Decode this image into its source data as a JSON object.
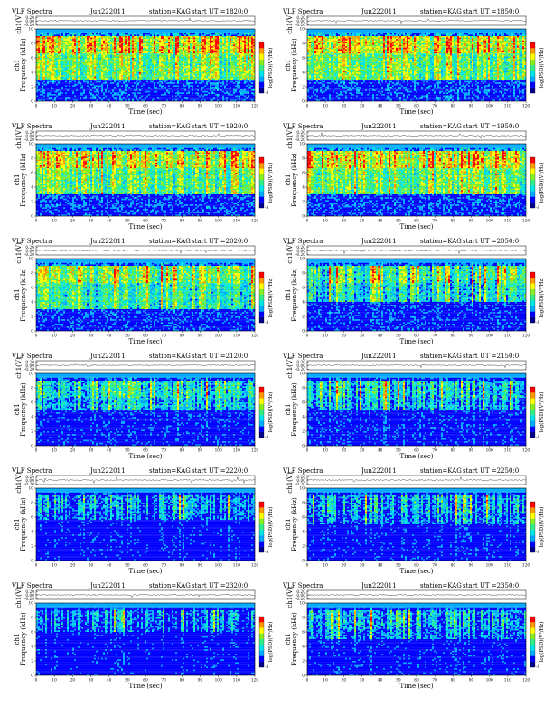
{
  "chart_data": [
    {
      "type": "heatmap",
      "title": "VLF Spectra",
      "date": "Jun222011",
      "station": "station=KAG",
      "start": "start  UT =1820:0",
      "ylabel": "ch1\nFrequency (kHz)",
      "trace_label": "ch1(V)",
      "trace_ticks": [
        "0.20",
        "0.00",
        "-0.20"
      ],
      "xlabel": "Time (sec)",
      "xlim": [
        0,
        120
      ],
      "ylim": [
        0,
        10
      ],
      "colorbar_label": "log(PSD)(V²/Hz)",
      "colorbar_ticks": [
        "",
        "-8"
      ],
      "density": 0.85,
      "band_low": 3
    },
    {
      "type": "heatmap",
      "title": "VLF Spectra",
      "date": "Jun222011",
      "station": "station=KAG",
      "start": "start  UT =1850:0",
      "ylabel": "ch1\nFrequency (kHz)",
      "trace_label": "ch1(V)",
      "trace_ticks": [
        "0.20",
        "0.00",
        "-0.20"
      ],
      "xlabel": "Time (sec)",
      "xlim": [
        0,
        120
      ],
      "ylim": [
        0,
        10
      ],
      "colorbar_label": "log(PSD)(V²/Hz)",
      "colorbar_ticks": [
        "",
        ""
      ],
      "density": 0.85,
      "band_low": 3
    },
    {
      "type": "heatmap",
      "title": "VLF Spectra",
      "date": "Jun222011",
      "station": "station=KAG",
      "start": "start  UT =1920:0",
      "ylabel": "ch1\nFrequency (kHz)",
      "trace_label": "ch1(V)",
      "trace_ticks": [
        "0.20",
        "0.00",
        "-0.20"
      ],
      "xlabel": "Time (sec)",
      "xlim": [
        0,
        120
      ],
      "ylim": [
        0,
        10
      ],
      "colorbar_label": "log(PSD)(V²/Hz)",
      "colorbar_ticks": [
        "",
        "-8"
      ],
      "density": 0.8,
      "band_low": 3
    },
    {
      "type": "heatmap",
      "title": "VLF Spectra",
      "date": "Jun222011",
      "station": "station=KAG",
      "start": "start  UT =1950:0",
      "ylabel": "ch1\nFrequency (kHz)",
      "trace_label": "ch1(V)",
      "trace_ticks": [
        "0.20",
        "0.00",
        "-0.20"
      ],
      "xlabel": "Time (sec)",
      "xlim": [
        0,
        120
      ],
      "ylim": [
        0,
        10
      ],
      "colorbar_label": "log(PSD)(V²/Hz)",
      "colorbar_ticks": [
        "",
        "-8"
      ],
      "density": 0.8,
      "band_low": 3
    },
    {
      "type": "heatmap",
      "title": "VLF Spectra",
      "date": "Jun222011",
      "station": "station=KAG",
      "start": "start  UT =2020:0",
      "ylabel": "ch1\nFrequency (kHz)",
      "trace_label": "ch1(V)",
      "trace_ticks": [
        "0.20",
        "0.00",
        "-0.20"
      ],
      "xlabel": "Time (sec)",
      "xlim": [
        0,
        120
      ],
      "ylim": [
        0,
        10
      ],
      "colorbar_label": "log(PSD)(V²/Hz)",
      "colorbar_ticks": [
        "",
        "-8"
      ],
      "density": 0.7,
      "band_low": 3
    },
    {
      "type": "heatmap",
      "title": "VLF Spectra",
      "date": "Jun222011",
      "station": "station=KAG",
      "start": "start  UT =2050:0",
      "ylabel": "ch1\nFrequency (kHz)",
      "trace_label": "ch1(V)",
      "trace_ticks": [
        "0.20",
        "0.00",
        "-0.20"
      ],
      "xlabel": "Time (sec)",
      "xlim": [
        0,
        120
      ],
      "ylim": [
        0,
        10
      ],
      "colorbar_label": "log(PSD)(V²/Hz)",
      "colorbar_ticks": [
        "",
        "-8"
      ],
      "density": 0.55,
      "band_low": 4
    },
    {
      "type": "heatmap",
      "title": "VLF Spectra",
      "date": "Jun222011",
      "station": "station=KAG",
      "start": "start  UT =2120:0",
      "ylabel": "ch1\nFrequency (kHz)",
      "trace_label": "ch1(V)",
      "trace_ticks": [
        "0.20",
        "0.00",
        "-0.20"
      ],
      "xlabel": "Time (sec)",
      "xlim": [
        0,
        120
      ],
      "ylim": [
        0,
        10
      ],
      "colorbar_label": "log(PSD)(V²/Hz)",
      "colorbar_ticks": [
        "",
        "-8"
      ],
      "density": 0.45,
      "band_low": 5
    },
    {
      "type": "heatmap",
      "title": "VLF Spectra",
      "date": "Jun222011",
      "station": "station=KAG",
      "start": "start  UT =2150:0",
      "ylabel": "ch1\nFrequency (kHz)",
      "trace_label": "ch1(V)",
      "trace_ticks": [
        "0.20",
        "0.00",
        "-0.20"
      ],
      "xlabel": "Time (sec)",
      "xlim": [
        0,
        120
      ],
      "ylim": [
        0,
        10
      ],
      "colorbar_label": "log(PSD)(V²/Hz)",
      "colorbar_ticks": [
        "",
        "-8"
      ],
      "density": 0.4,
      "band_low": 5
    },
    {
      "type": "heatmap",
      "title": "VLF Spectra",
      "date": "Jun222011",
      "station": "station=KAG",
      "start": "start  UT =2220:0",
      "ylabel": "ch1\nFrequency (kHz)",
      "trace_label": "ch1(V)",
      "trace_ticks": [
        "0.20",
        "0.00",
        "-0.20"
      ],
      "xlabel": "Time (sec)",
      "xlim": [
        0,
        120
      ],
      "ylim": [
        0,
        10
      ],
      "colorbar_label": "log(PSD)(V²/Hz)",
      "colorbar_ticks": [
        "",
        "-8"
      ],
      "density": 0.3,
      "band_low": 5.5
    },
    {
      "type": "heatmap",
      "title": "VLF Spectra",
      "date": "Jun222011",
      "station": "station=KAG",
      "start": "start  UT =2250:0",
      "ylabel": "ch1\nFrequency (kHz)",
      "trace_label": "ch1(V)",
      "trace_ticks": [
        "0.20",
        "0.00",
        "-0.20"
      ],
      "xlabel": "Time (sec)",
      "xlim": [
        0,
        120
      ],
      "ylim": [
        0,
        10
      ],
      "colorbar_label": "log(PSD)(V²/Hz)",
      "colorbar_ticks": [
        "",
        "-8"
      ],
      "density": 0.3,
      "band_low": 5
    },
    {
      "type": "heatmap",
      "title": "VLF Spectra",
      "date": "Jun222011",
      "station": "station=KAG",
      "start": "start  UT =2320:0",
      "ylabel": "ch1\nFrequency (kHz)",
      "trace_label": "ch1(V)",
      "trace_ticks": [
        "0.20",
        "0.00",
        "-0.20"
      ],
      "xlabel": "Time (sec)",
      "xlim": [
        0,
        120
      ],
      "ylim": [
        0,
        10
      ],
      "colorbar_label": "log(PSD)(V²/Hz)",
      "colorbar_ticks": [
        "",
        "-8"
      ],
      "density": 0.2,
      "band_low": 6
    },
    {
      "type": "heatmap",
      "title": "VLF Spectra",
      "date": "Jun222011",
      "station": "station=KAG",
      "start": "start  UT =2350:0",
      "ylabel": "ch1\nFrequency (kHz)",
      "trace_label": "ch1(V)",
      "trace_ticks": [
        "0.20",
        "0.00",
        "-0.20"
      ],
      "xlabel": "Time (sec)",
      "xlim": [
        0,
        120
      ],
      "ylim": [
        0,
        10
      ],
      "colorbar_label": "log(PSD)(V²/Hz)",
      "colorbar_ticks": [
        "",
        "-8"
      ],
      "density": 0.3,
      "band_low": 5
    }
  ],
  "xticks": [
    "0",
    "10",
    "20",
    "30",
    "40",
    "50",
    "60",
    "70",
    "80",
    "90",
    "100",
    "110",
    "120"
  ],
  "yticks": [
    "0",
    "2",
    "4",
    "6",
    "8",
    "10"
  ],
  "palette": [
    "#00008b",
    "#0000ff",
    "#00aaff",
    "#00e5e5",
    "#33ee88",
    "#88ee22",
    "#ffff00",
    "#ff9900",
    "#ff0000"
  ]
}
